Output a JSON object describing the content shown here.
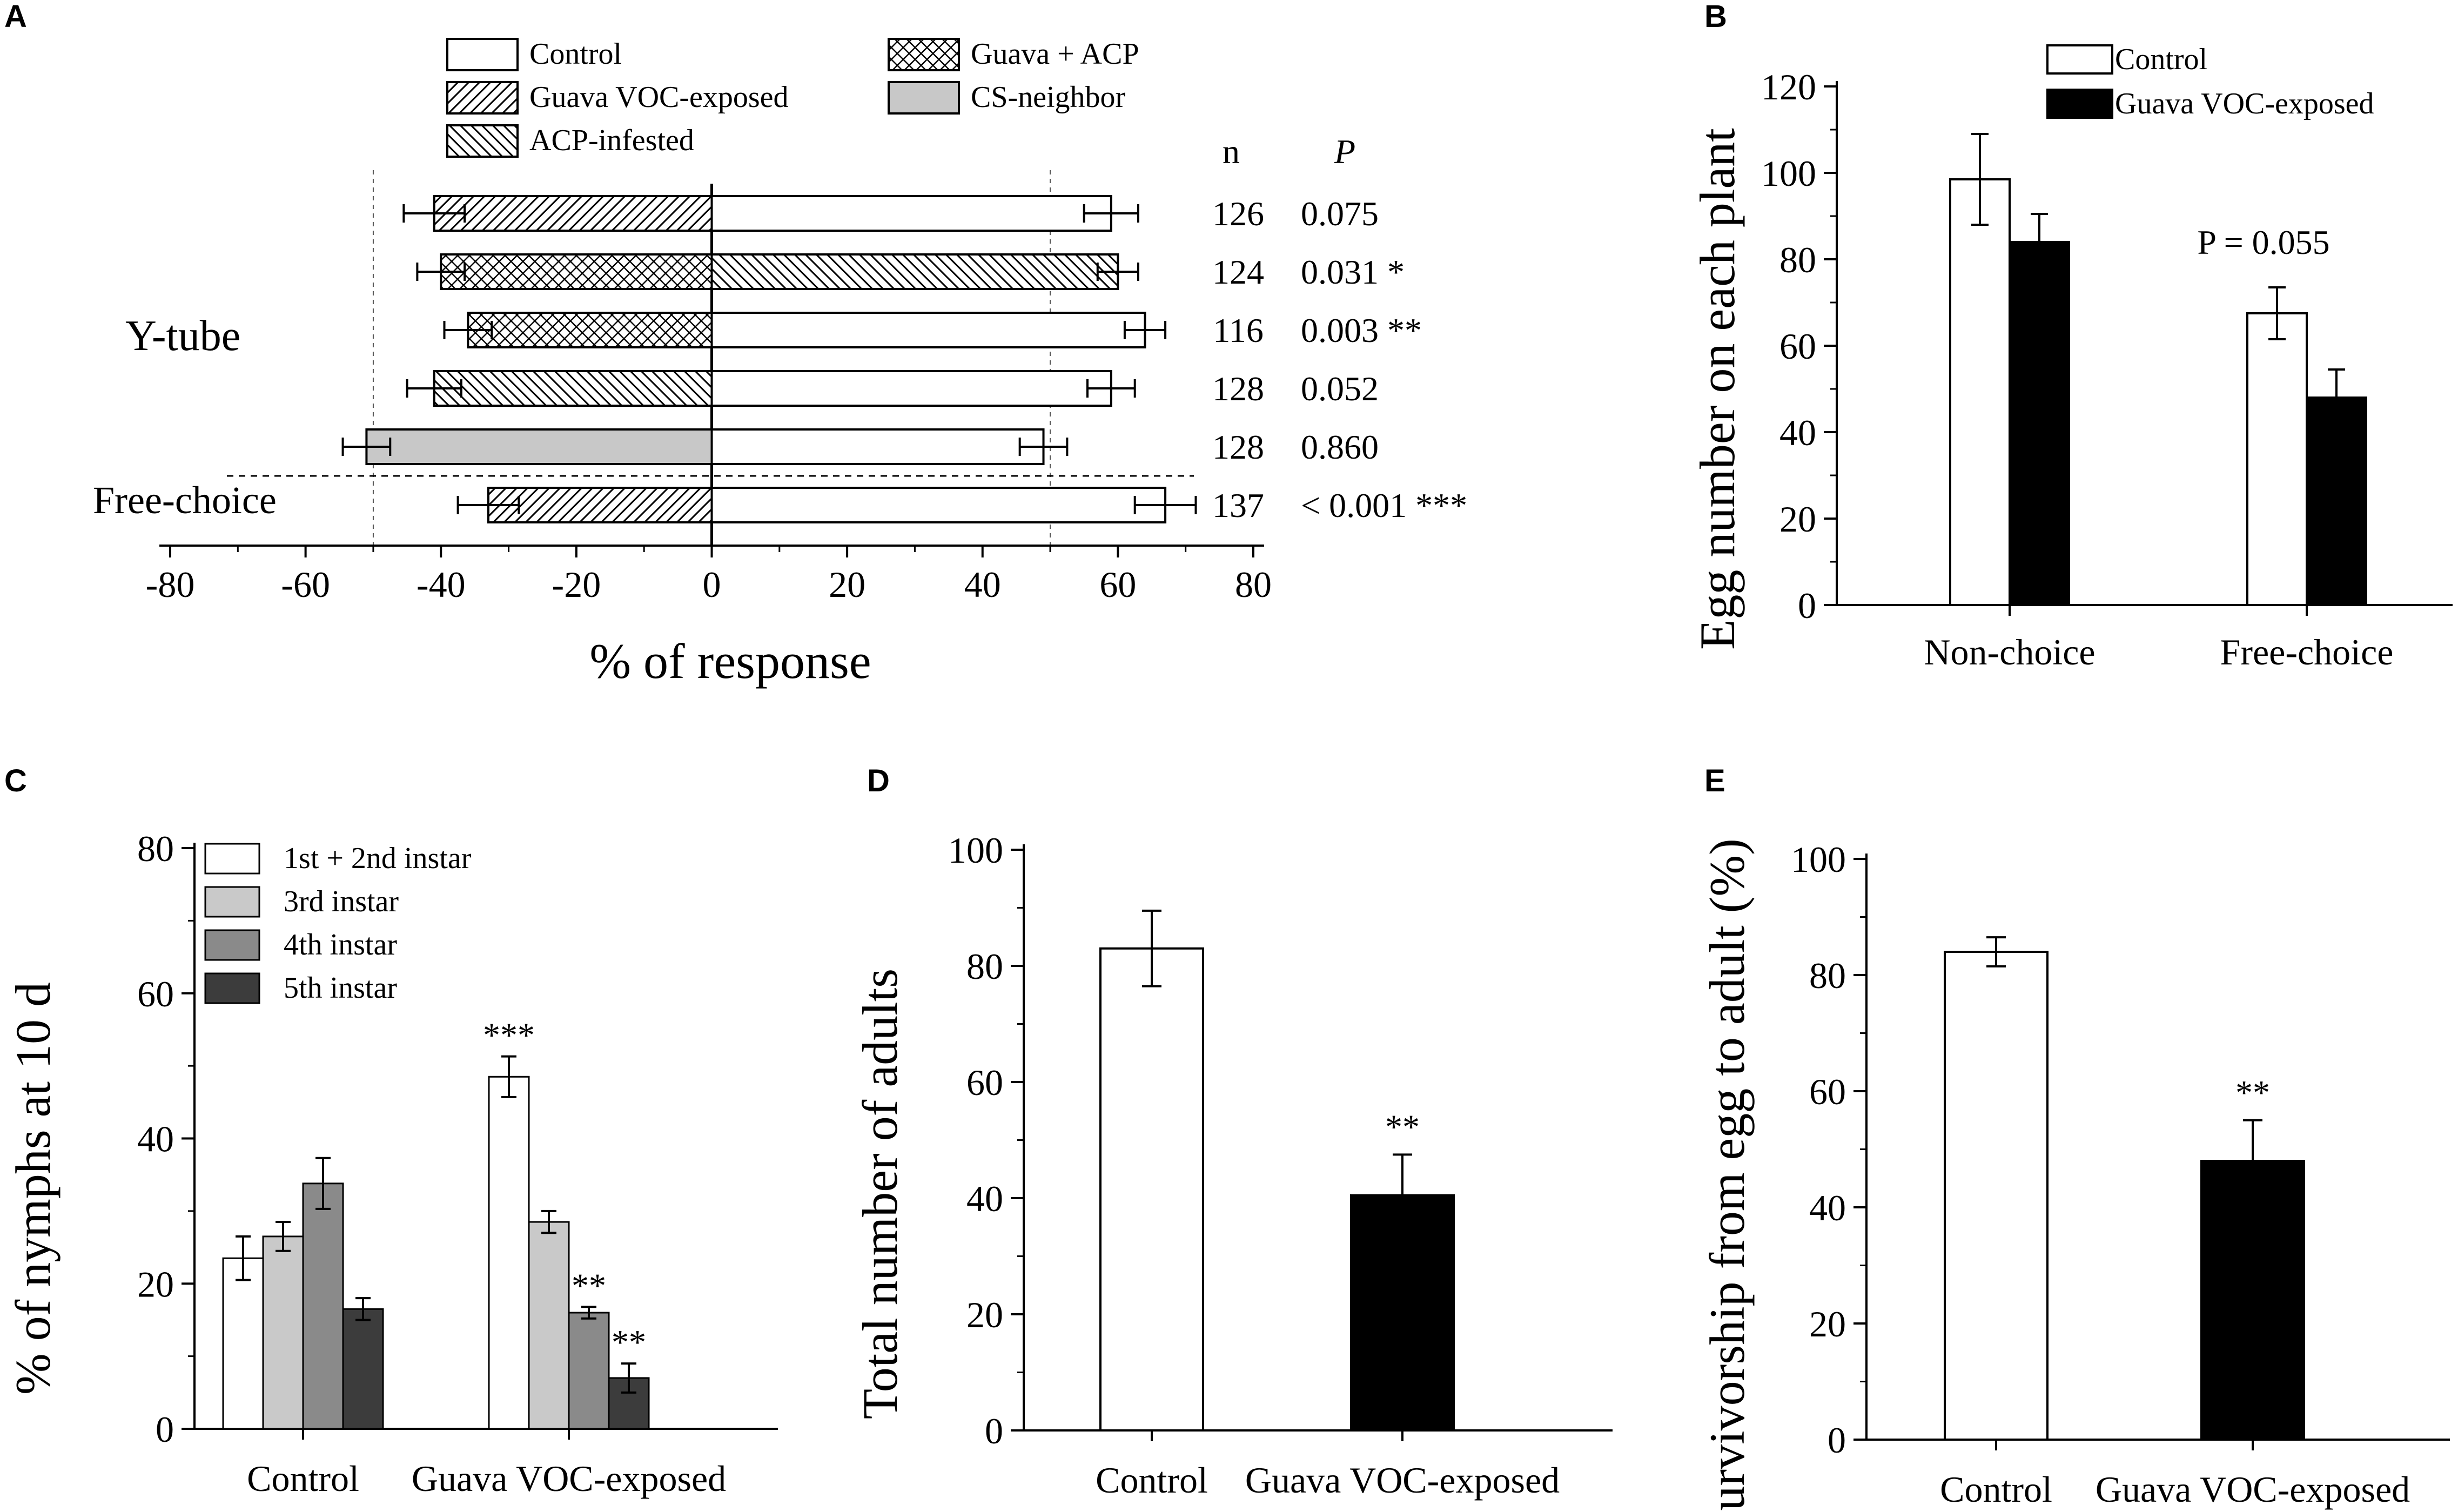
{
  "colors": {
    "white": "#ffffff",
    "black": "#000000",
    "cs_neighbor": "#c8c8c8",
    "instar1_2": "#ffffff",
    "instar3": "#c9c9c9",
    "instar4": "#8a8a8a",
    "instar5": "#3c3c3c"
  },
  "chart_data": [
    {
      "panel": "A",
      "type": "bar",
      "orientation": "horizontal",
      "xlabel": "% of response",
      "xlim": [
        -80,
        80
      ],
      "xticks": [
        -80,
        -60,
        -40,
        -20,
        0,
        20,
        40,
        60,
        80
      ],
      "reference_lines": [
        -50,
        50
      ],
      "legend": [
        {
          "label": "Control",
          "pattern": "white"
        },
        {
          "label": "Guava VOC-exposed",
          "pattern": "forward-hatch"
        },
        {
          "label": "ACP-infested",
          "pattern": "back-hatch"
        },
        {
          "label": "Guava + ACP",
          "pattern": "crosshatch"
        },
        {
          "label": "CS-neighbor",
          "pattern": "gray"
        }
      ],
      "col_headers": {
        "n": "n",
        "p": "P"
      },
      "group_labels": {
        "ytube": "Y-tube",
        "free": "Free-choice"
      },
      "rows": [
        {
          "left": -41,
          "left_err": 4.5,
          "left_pattern": "forward-hatch",
          "right": 59,
          "right_err": 4,
          "right_pattern": "white",
          "n": "126",
          "p": "0.075"
        },
        {
          "left": -40,
          "left_err": 3.5,
          "left_pattern": "crosshatch",
          "right": 60,
          "right_err": 3,
          "right_pattern": "back-hatch",
          "n": "124",
          "p": "0.031 *"
        },
        {
          "left": -36,
          "left_err": 3.5,
          "left_pattern": "crosshatch",
          "right": 64,
          "right_err": 3,
          "right_pattern": "white",
          "n": "116",
          "p": "0.003 **"
        },
        {
          "left": -41,
          "left_err": 4,
          "left_pattern": "back-hatch",
          "right": 59,
          "right_err": 3.5,
          "right_pattern": "white",
          "n": "128",
          "p": "0.052"
        },
        {
          "left": -51,
          "left_err": 3.5,
          "left_pattern": "gray",
          "right": 49,
          "right_err": 3.5,
          "right_pattern": "white",
          "n": "128",
          "p": "0.860"
        },
        {
          "left": -33,
          "left_err": 4.5,
          "left_pattern": "forward-hatch",
          "right": 67,
          "right_err": 4.5,
          "right_pattern": "white",
          "n": "137",
          "p": "< 0.001 ***"
        }
      ]
    },
    {
      "panel": "B",
      "type": "bar",
      "ylabel": "Egg number on each plant",
      "ylim": [
        0,
        120
      ],
      "yticks": [
        0,
        20,
        40,
        60,
        80,
        100,
        120
      ],
      "categories": [
        "Non-choice",
        "Free-choice"
      ],
      "series": [
        {
          "name": "Control",
          "color": "white",
          "values": [
            98.5,
            67.5
          ],
          "errors": [
            10.5,
            6
          ]
        },
        {
          "name": "Guava VOC-exposed",
          "color": "black",
          "values": [
            84,
            48
          ],
          "errors": [
            6.5,
            6.5
          ]
        }
      ],
      "annotation": "P = 0.055"
    },
    {
      "panel": "C",
      "type": "bar",
      "ylabel": "% of nymphs at 10 d",
      "ylim": [
        0,
        80
      ],
      "yticks": [
        0,
        20,
        40,
        60,
        80
      ],
      "categories": [
        "Control",
        "Guava VOC-exposed"
      ],
      "series": [
        {
          "name": "1st + 2nd instar",
          "color": "instar1_2",
          "values": [
            23.5,
            48.5
          ],
          "errors": [
            3,
            2.8
          ],
          "sig": [
            "",
            "***"
          ]
        },
        {
          "name": "3rd instar",
          "color": "instar3",
          "values": [
            26.5,
            28.5
          ],
          "errors": [
            2,
            1.5
          ],
          "sig": [
            "",
            ""
          ]
        },
        {
          "name": "4th instar",
          "color": "instar4",
          "values": [
            33.8,
            16
          ],
          "errors": [
            3.5,
            0.8
          ],
          "sig": [
            "",
            "**"
          ]
        },
        {
          "name": "5th instar",
          "color": "instar5",
          "values": [
            16.5,
            7
          ],
          "errors": [
            1.5,
            2
          ],
          "sig": [
            "",
            "**"
          ]
        }
      ]
    },
    {
      "panel": "D",
      "type": "bar",
      "ylabel": "Total number of adults",
      "ylim": [
        0,
        100
      ],
      "yticks": [
        0,
        20,
        40,
        60,
        80,
        100
      ],
      "categories": [
        "Control",
        "Guava VOC-exposed"
      ],
      "values": [
        83,
        40.5
      ],
      "errors": [
        6.5,
        7
      ],
      "colors": [
        "white",
        "black"
      ],
      "sig": [
        "",
        "**"
      ]
    },
    {
      "panel": "E",
      "type": "bar",
      "ylabel": "Survivorship from egg to adult (%)",
      "ylim": [
        0,
        100
      ],
      "yticks": [
        0,
        20,
        40,
        60,
        80,
        100
      ],
      "categories": [
        "Control",
        "Guava VOC-exposed"
      ],
      "values": [
        84,
        48
      ],
      "errors": [
        2.5,
        7
      ],
      "colors": [
        "white",
        "black"
      ],
      "sig": [
        "",
        "**"
      ]
    }
  ]
}
